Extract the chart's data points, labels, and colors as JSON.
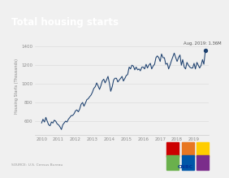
{
  "title": "Total housing starts",
  "ylabel": "Housing Starts (Thousands)",
  "source": "SOURCE: U.S. Census Bureau",
  "annotation": "Aug. 2019: 1.36M",
  "ylim": [
    450,
    1500
  ],
  "yticks": [
    600,
    800,
    1000,
    1200,
    1400
  ],
  "xlim": [
    2009.6,
    2019.85
  ],
  "xticks": [
    2010,
    2011,
    2012,
    2013,
    2014,
    2015,
    2016,
    2017,
    2018,
    2019
  ],
  "line_color": "#1b3f6e",
  "dot_color": "#1b3f6e",
  "bg_color": "#f0f0f0",
  "title_color": "#000000",
  "annotation_color": "#555555",
  "data": {
    "x": [
      2010.0,
      2010.08,
      2010.17,
      2010.25,
      2010.33,
      2010.42,
      2010.5,
      2010.58,
      2010.67,
      2010.75,
      2010.83,
      2010.92,
      2011.0,
      2011.08,
      2011.17,
      2011.25,
      2011.33,
      2011.42,
      2011.5,
      2011.58,
      2011.67,
      2011.75,
      2011.83,
      2011.92,
      2012.0,
      2012.08,
      2012.17,
      2012.25,
      2012.33,
      2012.42,
      2012.5,
      2012.58,
      2012.67,
      2012.75,
      2012.83,
      2012.92,
      2013.0,
      2013.08,
      2013.17,
      2013.25,
      2013.33,
      2013.42,
      2013.5,
      2013.58,
      2013.67,
      2013.75,
      2013.83,
      2013.92,
      2014.0,
      2014.08,
      2014.17,
      2014.25,
      2014.33,
      2014.42,
      2014.5,
      2014.58,
      2014.67,
      2014.75,
      2014.83,
      2014.92,
      2015.0,
      2015.08,
      2015.17,
      2015.25,
      2015.33,
      2015.42,
      2015.5,
      2015.58,
      2015.67,
      2015.75,
      2015.83,
      2015.92,
      2016.0,
      2016.08,
      2016.17,
      2016.25,
      2016.33,
      2016.42,
      2016.5,
      2016.58,
      2016.67,
      2016.75,
      2016.83,
      2016.92,
      2017.0,
      2017.08,
      2017.17,
      2017.25,
      2017.33,
      2017.42,
      2017.5,
      2017.58,
      2017.67,
      2017.75,
      2017.83,
      2017.92,
      2018.0,
      2018.08,
      2018.17,
      2018.25,
      2018.33,
      2018.42,
      2018.5,
      2018.58,
      2018.67,
      2018.75,
      2018.83,
      2018.92,
      2019.0,
      2019.08,
      2019.17,
      2019.25,
      2019.33,
      2019.42,
      2019.5,
      2019.58,
      2019.67
    ],
    "y": [
      580,
      620,
      590,
      640,
      600,
      560,
      550,
      590,
      580,
      610,
      600,
      570,
      560,
      540,
      510,
      560,
      580,
      600,
      590,
      620,
      640,
      660,
      660,
      680,
      710,
      720,
      700,
      730,
      780,
      800,
      760,
      790,
      830,
      840,
      860,
      880,
      910,
      950,
      970,
      1010,
      980,
      940,
      980,
      1030,
      1050,
      1010,
      1040,
      1080,
      1010,
      920,
      970,
      1040,
      1060,
      1060,
      1020,
      1040,
      1060,
      1080,
      1030,
      1060,
      1090,
      1100,
      1180,
      1160,
      1200,
      1190,
      1150,
      1180,
      1150,
      1160,
      1140,
      1180,
      1180,
      1160,
      1210,
      1170,
      1200,
      1220,
      1160,
      1190,
      1210,
      1280,
      1300,
      1280,
      1240,
      1320,
      1280,
      1280,
      1210,
      1220,
      1160,
      1200,
      1250,
      1290,
      1330,
      1280,
      1240,
      1280,
      1310,
      1200,
      1260,
      1180,
      1160,
      1230,
      1200,
      1180,
      1170,
      1170,
      1220,
      1160,
      1230,
      1200,
      1170,
      1200,
      1260,
      1210,
      1360
    ]
  },
  "cnbc_colors": [
    "#cc0000",
    "#e87722",
    "#ffcd00",
    "#6ab04c",
    "#0057a8",
    "#7b2d8b"
  ],
  "title_bar_color": "#1b3a6b"
}
